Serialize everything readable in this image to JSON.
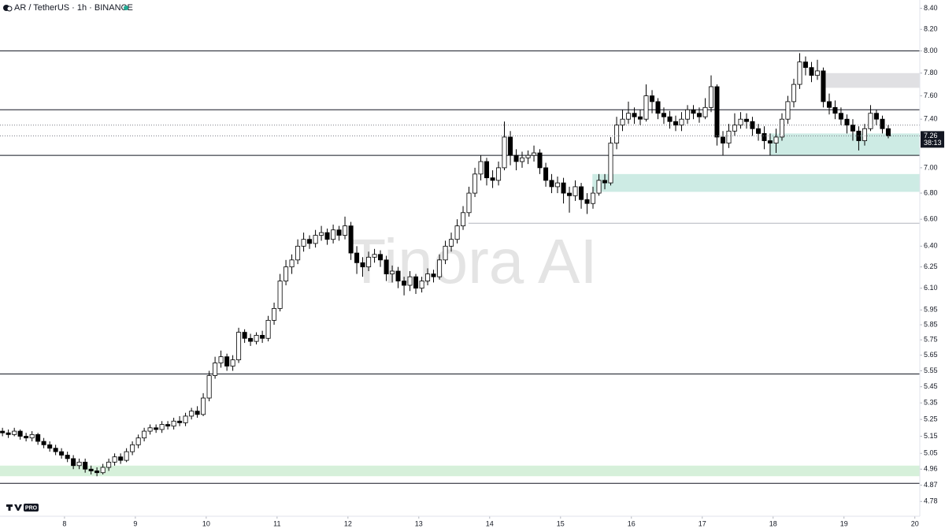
{
  "chart_data": {
    "type": "candlestick",
    "title": "AR / TetherUS · 1h · BINANCE",
    "watermark": "Tinora AI",
    "logo_badge": "PRO",
    "countdown": "38:13",
    "log_scale": true,
    "up_color": "#ffffff",
    "down_color": "#000000",
    "ylim": [
      4.7,
      8.48
    ],
    "yticks": [
      {
        "value": 8.4,
        "label": "8.40"
      },
      {
        "value": 8.2,
        "label": "8.20"
      },
      {
        "value": 8.0,
        "label": "8.00"
      },
      {
        "value": 7.8,
        "label": "7.80"
      },
      {
        "value": 7.6,
        "label": "7.60"
      },
      {
        "value": 7.4,
        "label": "7.40"
      },
      {
        "value": 7.0,
        "label": "7.00"
      },
      {
        "value": 6.8,
        "label": "6.80"
      },
      {
        "value": 6.6,
        "label": "6.60"
      },
      {
        "value": 6.4,
        "label": "6.40"
      },
      6.25,
      {
        "value": 6.1,
        "label": "6.10"
      },
      5.95,
      5.85,
      5.75,
      5.65,
      5.55,
      5.45,
      5.35,
      5.25,
      5.15,
      5.05,
      4.96,
      4.87,
      4.78
    ],
    "xlim": [
      7.09,
      20.07
    ],
    "xticks": [
      8,
      9,
      10,
      11,
      12,
      13,
      14,
      15,
      16,
      17,
      18,
      19,
      20
    ],
    "levels": [
      {
        "value": 8.0,
        "style": "solid",
        "color": "#131722"
      },
      {
        "value": 7.48,
        "style": "solid",
        "color": "#131722"
      },
      {
        "value": 7.35,
        "style": "dotted",
        "color": "#787b86"
      },
      {
        "value": 7.1,
        "style": "solid",
        "color": "#131722"
      },
      {
        "value": 6.57,
        "style": "solid",
        "color": "#b2b5be",
        "from": 13.7
      },
      {
        "value": 5.53,
        "style": "solid",
        "color": "#131722"
      },
      {
        "value": 4.88,
        "style": "solid",
        "color": "#131722"
      }
    ],
    "zones": [
      {
        "from": 18.72,
        "top": 7.8,
        "bottom": 7.67,
        "color": "#e0e0e3"
      },
      {
        "from": 17.95,
        "top": 7.28,
        "bottom": 7.1,
        "color": "#cdebe4"
      },
      {
        "from": 15.45,
        "top": 6.95,
        "bottom": 6.81,
        "color": "#cdebe4"
      },
      {
        "from": 7.09,
        "top": 4.98,
        "bottom": 4.92,
        "color": "#d6f0da"
      }
    ],
    "x": [
      7.125,
      7.208,
      7.292,
      7.375,
      7.458,
      7.542,
      7.625,
      7.708,
      7.792,
      7.875,
      7.958,
      8.042,
      8.125,
      8.208,
      8.292,
      8.375,
      8.458,
      8.542,
      8.625,
      8.708,
      8.792,
      8.875,
      8.958,
      9.042,
      9.125,
      9.208,
      9.292,
      9.375,
      9.458,
      9.542,
      9.625,
      9.708,
      9.792,
      9.875,
      9.958,
      10.042,
      10.125,
      10.208,
      10.292,
      10.375,
      10.458,
      10.542,
      10.625,
      10.708,
      10.792,
      10.875,
      10.958,
      11.042,
      11.125,
      11.208,
      11.292,
      11.375,
      11.458,
      11.542,
      11.625,
      11.708,
      11.792,
      11.875,
      11.958,
      12.042,
      12.125,
      12.208,
      12.292,
      12.375,
      12.458,
      12.542,
      12.625,
      12.708,
      12.792,
      12.875,
      12.958,
      13.042,
      13.125,
      13.208,
      13.292,
      13.375,
      13.458,
      13.542,
      13.625,
      13.708,
      13.792,
      13.875,
      13.958,
      14.042,
      14.125,
      14.208,
      14.292,
      14.375,
      14.458,
      14.542,
      14.625,
      14.708,
      14.792,
      14.875,
      14.958,
      15.042,
      15.125,
      15.208,
      15.292,
      15.375,
      15.458,
      15.542,
      15.625,
      15.708,
      15.792,
      15.875,
      15.958,
      16.042,
      16.125,
      16.208,
      16.292,
      16.375,
      16.458,
      16.542,
      16.625,
      16.708,
      16.792,
      16.875,
      16.958,
      17.042,
      17.125,
      17.208,
      17.292,
      17.375,
      17.458,
      17.542,
      17.625,
      17.708,
      17.792,
      17.875,
      17.958,
      18.042,
      18.125,
      18.208,
      18.292,
      18.375,
      18.458,
      18.542,
      18.625,
      18.708,
      18.792,
      18.875,
      18.958,
      19.042,
      19.125,
      19.208,
      19.292,
      19.375,
      19.458,
      19.542,
      19.625
    ],
    "open": [
      5.18,
      5.17,
      5.16,
      5.18,
      5.15,
      5.14,
      5.16,
      5.12,
      5.1,
      5.08,
      5.06,
      5.04,
      5.02,
      4.98,
      5.0,
      4.96,
      4.95,
      4.94,
      4.97,
      5.0,
      5.03,
      5.01,
      5.06,
      5.1,
      5.14,
      5.18,
      5.2,
      5.19,
      5.22,
      5.21,
      5.24,
      5.23,
      5.27,
      5.3,
      5.28,
      5.38,
      5.52,
      5.6,
      5.64,
      5.58,
      5.62,
      5.8,
      5.76,
      5.74,
      5.78,
      5.76,
      5.88,
      5.96,
      6.15,
      6.25,
      6.3,
      6.4,
      6.45,
      6.42,
      6.48,
      6.5,
      6.45,
      6.52,
      6.48,
      6.55,
      6.35,
      6.28,
      6.25,
      6.32,
      6.34,
      6.3,
      6.2,
      6.22,
      6.15,
      6.12,
      6.18,
      6.1,
      6.15,
      6.2,
      6.18,
      6.3,
      6.4,
      6.45,
      6.55,
      6.65,
      6.8,
      6.95,
      7.05,
      6.92,
      6.9,
      7.0,
      7.25,
      7.1,
      7.05,
      7.08,
      7.1,
      7.12,
      7.0,
      6.9,
      6.85,
      6.88,
      6.8,
      6.78,
      6.85,
      6.75,
      6.72,
      6.8,
      6.9,
      6.88,
      7.2,
      7.35,
      7.4,
      7.45,
      7.42,
      7.4,
      7.6,
      7.55,
      7.45,
      7.42,
      7.38,
      7.35,
      7.4,
      7.48,
      7.45,
      7.42,
      7.5,
      7.68,
      7.25,
      7.2,
      7.3,
      7.35,
      7.4,
      7.38,
      7.32,
      7.28,
      7.22,
      7.2,
      7.25,
      7.4,
      7.55,
      7.7,
      7.9,
      7.85,
      7.78,
      7.82,
      7.55,
      7.5,
      7.45,
      7.4,
      7.35,
      7.3,
      7.22,
      7.32,
      7.45,
      7.4,
      7.32
    ],
    "high": [
      5.2,
      5.19,
      5.2,
      5.19,
      5.17,
      5.18,
      5.17,
      5.14,
      5.12,
      5.1,
      5.08,
      5.06,
      5.04,
      5.02,
      5.02,
      4.98,
      4.97,
      4.99,
      5.02,
      5.05,
      5.05,
      5.08,
      5.12,
      5.16,
      5.2,
      5.22,
      5.22,
      5.24,
      5.24,
      5.26,
      5.27,
      5.29,
      5.32,
      5.33,
      5.41,
      5.55,
      5.64,
      5.68,
      5.66,
      5.65,
      5.83,
      5.82,
      5.79,
      5.8,
      5.81,
      5.91,
      6.0,
      6.2,
      6.3,
      6.34,
      6.45,
      6.5,
      6.48,
      6.52,
      6.55,
      6.53,
      6.56,
      6.55,
      6.62,
      6.58,
      6.4,
      6.32,
      6.36,
      6.38,
      6.37,
      6.33,
      6.26,
      6.25,
      6.18,
      6.22,
      6.2,
      6.18,
      6.24,
      6.23,
      6.34,
      6.44,
      6.5,
      6.6,
      6.7,
      6.85,
      7.0,
      7.1,
      7.08,
      6.98,
      7.05,
      7.38,
      7.3,
      7.15,
      7.13,
      7.14,
      7.18,
      7.15,
      7.04,
      6.95,
      6.93,
      6.92,
      6.85,
      6.9,
      6.88,
      6.8,
      6.85,
      6.95,
      6.95,
      7.25,
      7.42,
      7.48,
      7.55,
      7.5,
      7.48,
      7.7,
      7.65,
      7.58,
      7.5,
      7.47,
      7.43,
      7.46,
      7.52,
      7.52,
      7.5,
      7.58,
      7.78,
      7.7,
      7.3,
      7.36,
      7.45,
      7.46,
      7.45,
      7.42,
      7.36,
      7.34,
      7.28,
      7.32,
      7.45,
      7.6,
      7.75,
      7.98,
      7.95,
      7.9,
      7.92,
      7.85,
      7.62,
      7.56,
      7.5,
      7.44,
      7.4,
      7.34,
      7.36,
      7.52,
      7.48,
      7.43,
      7.35
    ],
    "low": [
      5.15,
      5.14,
      5.15,
      5.13,
      5.12,
      5.12,
      5.1,
      5.08,
      5.06,
      5.04,
      5.02,
      5.0,
      4.96,
      4.96,
      4.94,
      4.93,
      4.92,
      4.93,
      4.95,
      4.98,
      4.99,
      5.0,
      5.04,
      5.08,
      5.12,
      5.16,
      5.17,
      5.17,
      5.19,
      5.19,
      5.21,
      5.21,
      5.25,
      5.26,
      5.27,
      5.36,
      5.5,
      5.57,
      5.55,
      5.55,
      5.6,
      5.73,
      5.71,
      5.72,
      5.73,
      5.74,
      5.85,
      5.94,
      6.12,
      6.2,
      6.27,
      6.36,
      6.38,
      6.39,
      6.44,
      6.41,
      6.42,
      6.44,
      6.45,
      6.3,
      6.2,
      6.18,
      6.22,
      6.28,
      6.25,
      6.15,
      6.14,
      6.1,
      6.05,
      6.08,
      6.06,
      6.07,
      6.12,
      6.14,
      6.16,
      6.27,
      6.36,
      6.42,
      6.52,
      6.62,
      6.77,
      6.9,
      6.86,
      6.84,
      6.86,
      6.98,
      7.02,
      6.98,
      7.0,
      7.03,
      7.05,
      6.95,
      6.85,
      6.8,
      6.8,
      6.72,
      6.65,
      6.74,
      6.68,
      6.64,
      6.68,
      6.78,
      6.83,
      6.86,
      7.15,
      7.3,
      7.36,
      7.36,
      7.35,
      7.38,
      7.45,
      7.4,
      7.36,
      7.32,
      7.3,
      7.3,
      7.36,
      7.4,
      7.37,
      7.4,
      7.46,
      7.18,
      7.1,
      7.16,
      7.26,
      7.32,
      7.32,
      7.26,
      7.22,
      7.15,
      7.1,
      7.12,
      7.22,
      7.36,
      7.5,
      7.66,
      7.78,
      7.72,
      7.74,
      7.5,
      7.44,
      7.4,
      7.35,
      7.28,
      7.22,
      7.14,
      7.18,
      7.3,
      7.35,
      7.28,
      7.24
    ],
    "close": [
      5.17,
      5.16,
      5.18,
      5.15,
      5.14,
      5.16,
      5.12,
      5.1,
      5.08,
      5.06,
      5.04,
      5.02,
      4.98,
      5.0,
      4.96,
      4.95,
      4.94,
      4.97,
      5.0,
      5.03,
      5.01,
      5.06,
      5.1,
      5.14,
      5.18,
      5.2,
      5.19,
      5.22,
      5.21,
      5.24,
      5.23,
      5.27,
      5.3,
      5.28,
      5.38,
      5.52,
      5.6,
      5.64,
      5.58,
      5.62,
      5.8,
      5.76,
      5.74,
      5.78,
      5.76,
      5.88,
      5.96,
      6.15,
      6.25,
      6.3,
      6.4,
      6.45,
      6.42,
      6.48,
      6.5,
      6.45,
      6.52,
      6.48,
      6.55,
      6.35,
      6.28,
      6.25,
      6.32,
      6.34,
      6.3,
      6.2,
      6.22,
      6.15,
      6.12,
      6.18,
      6.1,
      6.15,
      6.2,
      6.18,
      6.3,
      6.4,
      6.45,
      6.55,
      6.65,
      6.8,
      6.95,
      7.05,
      6.92,
      6.9,
      7.0,
      7.25,
      7.1,
      7.05,
      7.08,
      7.1,
      7.12,
      7.0,
      6.9,
      6.85,
      6.88,
      6.8,
      6.78,
      6.85,
      6.75,
      6.72,
      6.8,
      6.9,
      6.88,
      7.2,
      7.35,
      7.4,
      7.45,
      7.42,
      7.4,
      7.6,
      7.55,
      7.45,
      7.42,
      7.38,
      7.35,
      7.4,
      7.48,
      7.45,
      7.42,
      7.5,
      7.68,
      7.25,
      7.2,
      7.3,
      7.35,
      7.4,
      7.38,
      7.32,
      7.28,
      7.22,
      7.2,
      7.25,
      7.4,
      7.55,
      7.7,
      7.9,
      7.85,
      7.78,
      7.82,
      7.55,
      7.5,
      7.45,
      7.4,
      7.35,
      7.3,
      7.22,
      7.32,
      7.45,
      7.4,
      7.32,
      7.26
    ]
  }
}
